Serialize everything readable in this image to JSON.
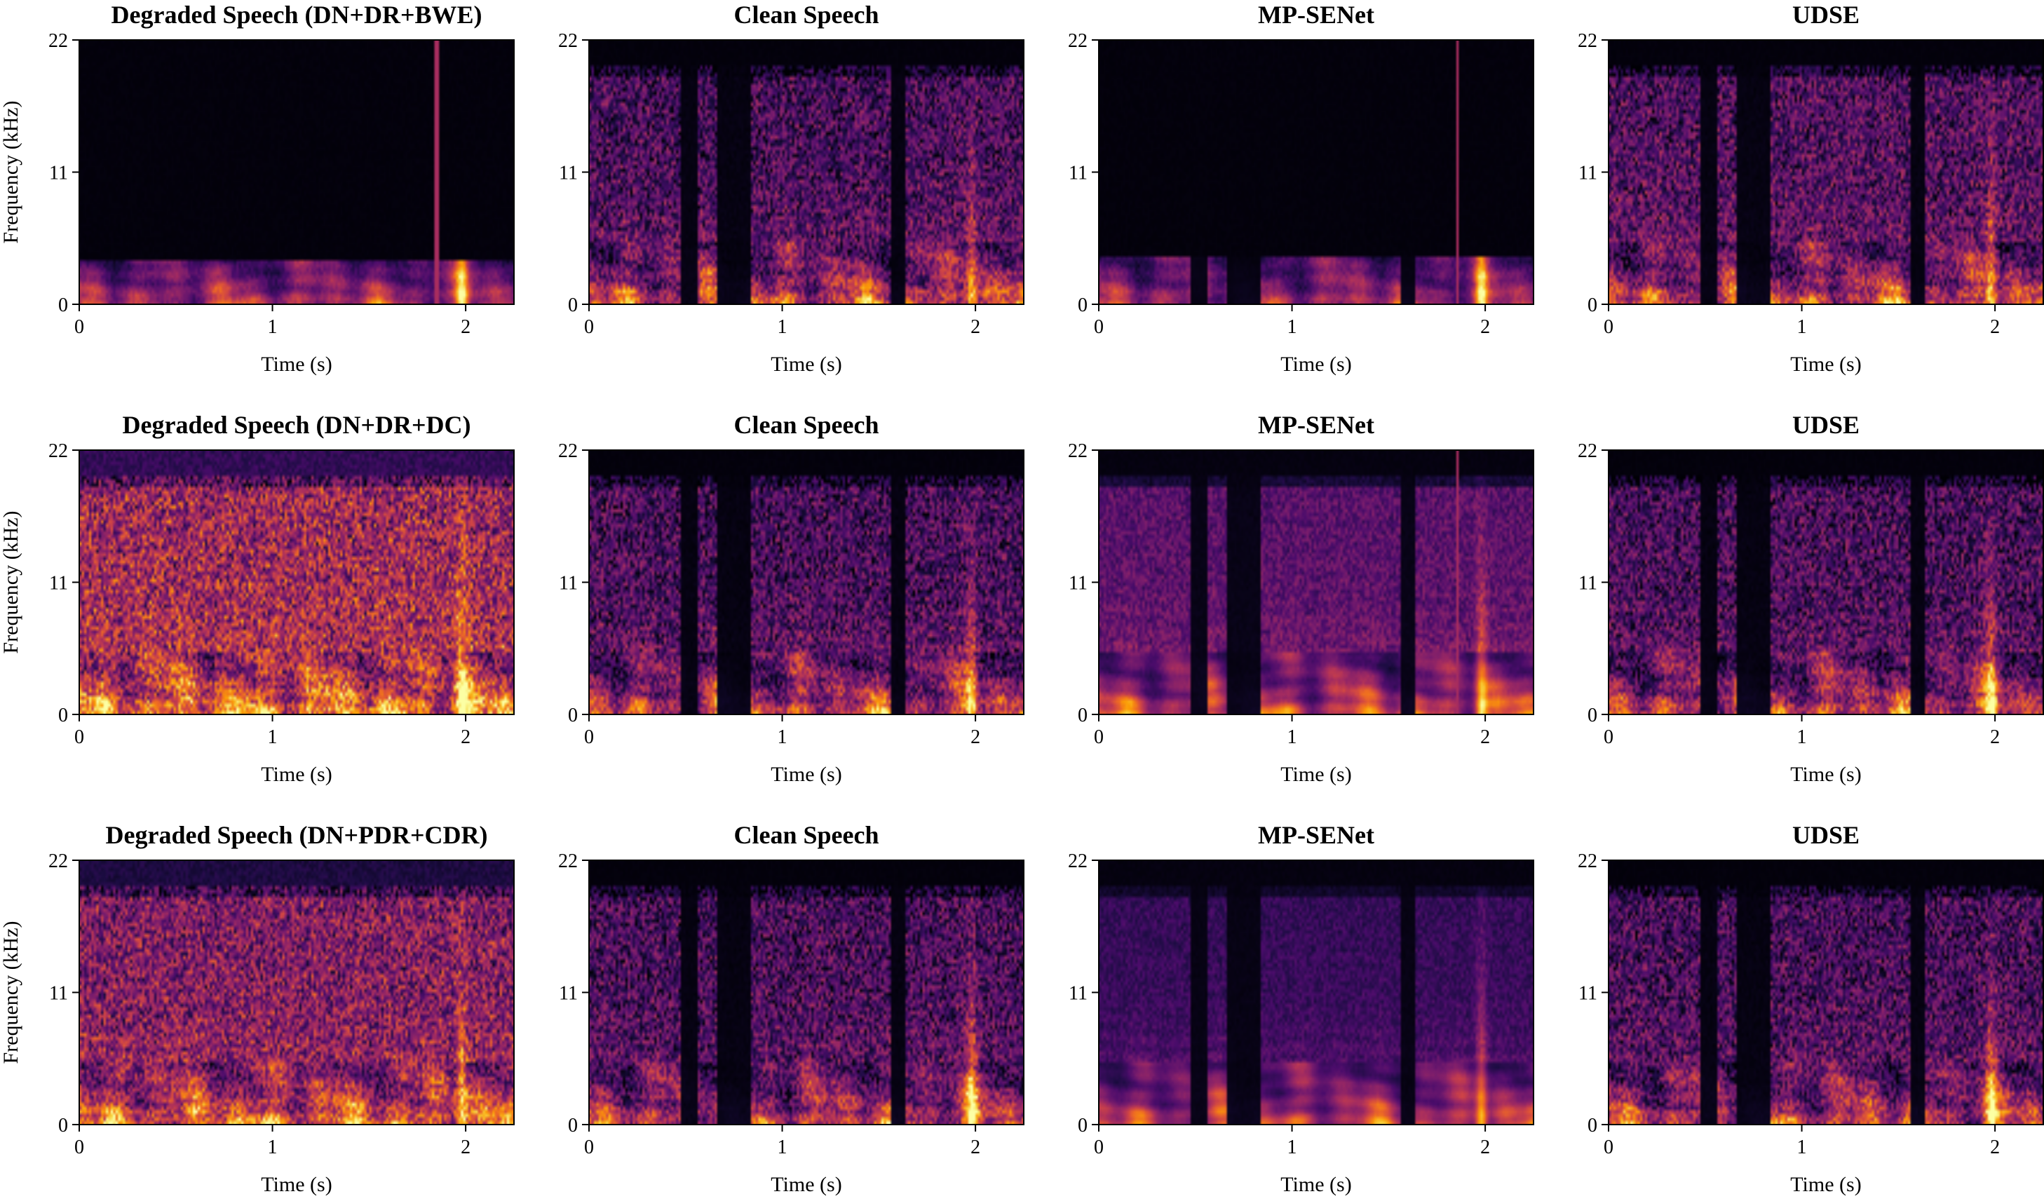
{
  "figure": {
    "description_type": "spectrogram-grid",
    "colormap": [
      "#000004",
      "#1b0c41",
      "#4a0c6b",
      "#781c6d",
      "#a52c60",
      "#cf4446",
      "#ed6925",
      "#fb9b06",
      "#f7d13d",
      "#fcffa4"
    ]
  },
  "chart_data": [
    {
      "type": "heatmap",
      "title": "Degraded Speech (DN+DR+BWE)",
      "xlabel": "Time (s)",
      "ylabel": "Frequency (kHz)",
      "xticks": [
        "0",
        "1",
        "2"
      ],
      "yticks": [
        "0",
        "11",
        "22"
      ],
      "xlim": [
        0,
        2.25
      ],
      "ylim": [
        0,
        22
      ],
      "profile": {
        "bw": 3.8,
        "floor": 0.02,
        "strength": 0.7,
        "noise": 0.1,
        "gaps": false,
        "smooth": false,
        "hf": 0.05,
        "spike": 1.85
      }
    },
    {
      "type": "heatmap",
      "title": "Clean Speech",
      "xlabel": "Time (s)",
      "ylabel": "",
      "xticks": [
        "0",
        "1",
        "2"
      ],
      "yticks": [
        "0",
        "11",
        "22"
      ],
      "xlim": [
        0,
        2.25
      ],
      "ylim": [
        0,
        22
      ],
      "profile": {
        "bw": 20,
        "floor": 0.02,
        "strength": 0.85,
        "noise": 0.35,
        "gaps": true,
        "smooth": false,
        "hf": 0.45,
        "spike": null
      }
    },
    {
      "type": "heatmap",
      "title": "MP-SENet",
      "xlabel": "Time (s)",
      "ylabel": "",
      "xticks": [
        "0",
        "1",
        "2"
      ],
      "yticks": [
        "0",
        "11",
        "22"
      ],
      "xlim": [
        0,
        2.25
      ],
      "ylim": [
        0,
        22
      ],
      "profile": {
        "bw": 4.0,
        "floor": 0.02,
        "strength": 0.68,
        "noise": 0.1,
        "gaps": true,
        "smooth": false,
        "hf": 0.0,
        "spike": 1.86
      }
    },
    {
      "type": "heatmap",
      "title": "UDSE",
      "xlabel": "Time (s)",
      "ylabel": "",
      "xticks": [
        "0",
        "1",
        "2"
      ],
      "yticks": [
        "0",
        "11",
        "22"
      ],
      "xlim": [
        0,
        2.25
      ],
      "ylim": [
        0,
        22
      ],
      "profile": {
        "bw": 20,
        "floor": 0.02,
        "strength": 0.85,
        "noise": 0.35,
        "gaps": true,
        "smooth": false,
        "hf": 0.5,
        "spike": null
      }
    },
    {
      "type": "heatmap",
      "title": "Degraded Speech (DN+DR+DC)",
      "xlabel": "Time (s)",
      "ylabel": "Frequency (kHz)",
      "xticks": [
        "0",
        "1",
        "2"
      ],
      "yticks": [
        "0",
        "11",
        "22"
      ],
      "xlim": [
        0,
        2.25
      ],
      "ylim": [
        0,
        22
      ],
      "profile": {
        "bw": 20,
        "floor": 0.22,
        "strength": 0.9,
        "noise": 0.45,
        "gaps": false,
        "smooth": false,
        "hf": 0.6,
        "spike": null
      }
    },
    {
      "type": "heatmap",
      "title": "Clean Speech",
      "xlabel": "Time (s)",
      "ylabel": "",
      "xticks": [
        "0",
        "1",
        "2"
      ],
      "yticks": [
        "0",
        "11",
        "22"
      ],
      "xlim": [
        0,
        2.25
      ],
      "ylim": [
        0,
        22
      ],
      "profile": {
        "bw": 20,
        "floor": 0.02,
        "strength": 0.85,
        "noise": 0.35,
        "gaps": true,
        "smooth": false,
        "hf": 0.45,
        "spike": null
      }
    },
    {
      "type": "heatmap",
      "title": "MP-SENet",
      "xlabel": "Time (s)",
      "ylabel": "",
      "xticks": [
        "0",
        "1",
        "2"
      ],
      "yticks": [
        "0",
        "11",
        "22"
      ],
      "xlim": [
        0,
        2.25
      ],
      "ylim": [
        0,
        22
      ],
      "profile": {
        "bw": 20,
        "floor": 0.03,
        "strength": 0.85,
        "noise": 0.15,
        "gaps": true,
        "smooth": true,
        "hf": 0.55,
        "spike": 1.86
      }
    },
    {
      "type": "heatmap",
      "title": "UDSE",
      "xlabel": "Time (s)",
      "ylabel": "",
      "xticks": [
        "0",
        "1",
        "2"
      ],
      "yticks": [
        "0",
        "11",
        "22"
      ],
      "xlim": [
        0,
        2.25
      ],
      "ylim": [
        0,
        22
      ],
      "profile": {
        "bw": 20,
        "floor": 0.02,
        "strength": 0.85,
        "noise": 0.35,
        "gaps": true,
        "smooth": false,
        "hf": 0.45,
        "spike": null
      }
    },
    {
      "type": "heatmap",
      "title": "Degraded Speech (DN+PDR+CDR)",
      "xlabel": "Time (s)",
      "ylabel": "Frequency (kHz)",
      "xticks": [
        "0",
        "1",
        "2"
      ],
      "yticks": [
        "0",
        "11",
        "22"
      ],
      "xlim": [
        0,
        2.25
      ],
      "ylim": [
        0,
        22
      ],
      "profile": {
        "bw": 20,
        "floor": 0.15,
        "strength": 0.85,
        "noise": 0.4,
        "gaps": false,
        "smooth": false,
        "hf": 0.55,
        "spike": null
      }
    },
    {
      "type": "heatmap",
      "title": "Clean Speech",
      "xlabel": "Time (s)",
      "ylabel": "",
      "xticks": [
        "0",
        "1",
        "2"
      ],
      "yticks": [
        "0",
        "11",
        "22"
      ],
      "xlim": [
        0,
        2.25
      ],
      "ylim": [
        0,
        22
      ],
      "profile": {
        "bw": 20,
        "floor": 0.02,
        "strength": 0.85,
        "noise": 0.35,
        "gaps": true,
        "smooth": false,
        "hf": 0.45,
        "spike": null
      }
    },
    {
      "type": "heatmap",
      "title": "MP-SENet",
      "xlabel": "Time (s)",
      "ylabel": "",
      "xticks": [
        "0",
        "1",
        "2"
      ],
      "yticks": [
        "0",
        "11",
        "22"
      ],
      "xlim": [
        0,
        2.25
      ],
      "ylim": [
        0,
        22
      ],
      "profile": {
        "bw": 20,
        "floor": 0.03,
        "strength": 0.78,
        "noise": 0.1,
        "gaps": true,
        "smooth": true,
        "hf": 0.35,
        "spike": null
      }
    },
    {
      "type": "heatmap",
      "title": "UDSE",
      "xlabel": "Time (s)",
      "ylabel": "",
      "xticks": [
        "0",
        "1",
        "2"
      ],
      "yticks": [
        "0",
        "11",
        "22"
      ],
      "xlim": [
        0,
        2.25
      ],
      "ylim": [
        0,
        22
      ],
      "profile": {
        "bw": 20,
        "floor": 0.02,
        "strength": 0.85,
        "noise": 0.35,
        "gaps": true,
        "smooth": false,
        "hf": 0.45,
        "spike": null
      }
    }
  ]
}
